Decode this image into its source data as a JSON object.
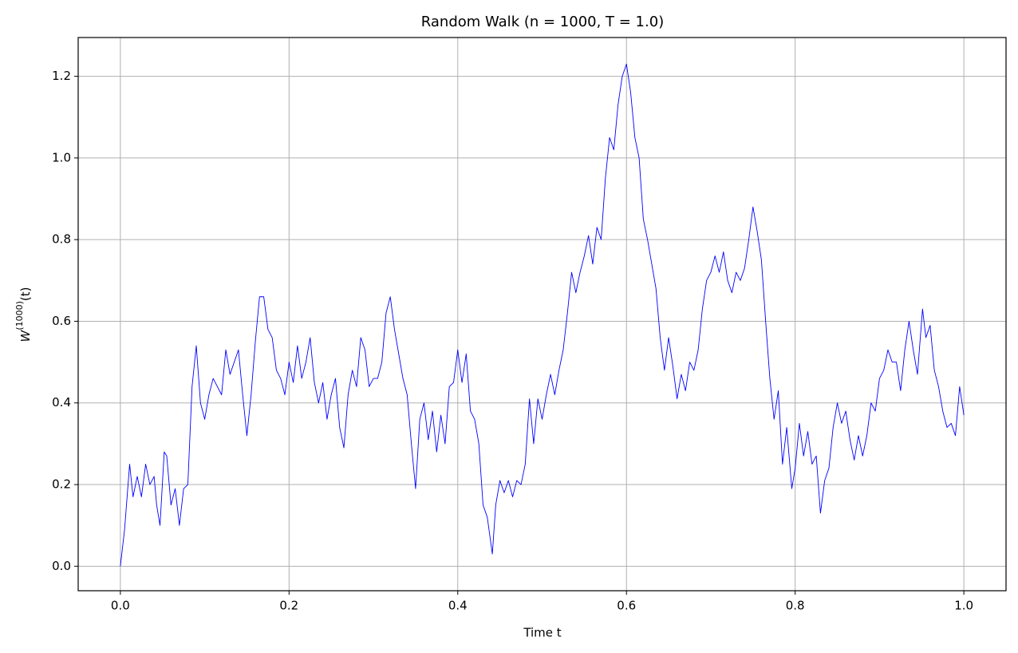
{
  "chart_data": {
    "type": "line",
    "title": "Random Walk (n = 1000, T = 1.0)",
    "xlabel": "Time t",
    "ylabel": {
      "base": "W",
      "sup": "(1000)",
      "arg": "(t)"
    },
    "color": "#0000ff",
    "grid": true,
    "xlim": [
      -0.05,
      1.05
    ],
    "ylim": [
      -0.06,
      1.295
    ],
    "xticks": [
      {
        "value": 0,
        "label": "0.0"
      },
      {
        "value": 0.2,
        "label": "0.2"
      },
      {
        "value": 0.4,
        "label": "0.4"
      },
      {
        "value": 0.6,
        "label": "0.6"
      },
      {
        "value": 0.8,
        "label": "0.8"
      },
      {
        "value": 1,
        "label": "1.0"
      }
    ],
    "yticks": [
      {
        "value": 0,
        "label": "0.0"
      },
      {
        "value": 0.2,
        "label": "0.2"
      },
      {
        "value": 0.4,
        "label": "0.4"
      },
      {
        "value": 0.6,
        "label": "0.6"
      },
      {
        "value": 0.8,
        "label": "0.8"
      },
      {
        "value": 1,
        "label": "1.0"
      },
      {
        "value": 1.2,
        "label": "1.2"
      }
    ],
    "x": [
      0,
      0.005,
      0.011,
      0.015,
      0.02,
      0.025,
      0.03,
      0.035,
      0.04,
      0.043,
      0.047,
      0.052,
      0.055,
      0.06,
      0.065,
      0.07,
      0.075,
      0.08,
      0.085,
      0.09,
      0.095,
      0.1,
      0.105,
      0.11,
      0.12,
      0.125,
      0.13,
      0.14,
      0.145,
      0.15,
      0.155,
      0.16,
      0.165,
      0.17,
      0.175,
      0.18,
      0.185,
      0.19,
      0.195,
      0.2,
      0.205,
      0.21,
      0.215,
      0.22,
      0.225,
      0.23,
      0.235,
      0.24,
      0.245,
      0.25,
      0.255,
      0.26,
      0.265,
      0.27,
      0.275,
      0.28,
      0.285,
      0.29,
      0.295,
      0.3,
      0.305,
      0.31,
      0.315,
      0.32,
      0.325,
      0.33,
      0.335,
      0.34,
      0.345,
      0.35,
      0.355,
      0.36,
      0.365,
      0.37,
      0.375,
      0.38,
      0.385,
      0.39,
      0.395,
      0.4,
      0.405,
      0.41,
      0.415,
      0.42,
      0.425,
      0.43,
      0.435,
      0.441,
      0.445,
      0.45,
      0.455,
      0.46,
      0.465,
      0.47,
      0.475,
      0.48,
      0.485,
      0.49,
      0.495,
      0.5,
      0.505,
      0.51,
      0.515,
      0.52,
      0.525,
      0.53,
      0.535,
      0.54,
      0.545,
      0.55,
      0.555,
      0.56,
      0.565,
      0.57,
      0.575,
      0.58,
      0.585,
      0.59,
      0.595,
      0.6,
      0.605,
      0.61,
      0.615,
      0.62,
      0.625,
      0.63,
      0.635,
      0.64,
      0.645,
      0.65,
      0.655,
      0.66,
      0.665,
      0.67,
      0.675,
      0.68,
      0.685,
      0.69,
      0.695,
      0.7,
      0.705,
      0.71,
      0.715,
      0.72,
      0.725,
      0.73,
      0.735,
      0.74,
      0.745,
      0.75,
      0.755,
      0.76,
      0.765,
      0.77,
      0.775,
      0.78,
      0.785,
      0.79,
      0.796,
      0.8,
      0.805,
      0.81,
      0.815,
      0.82,
      0.825,
      0.83,
      0.835,
      0.84,
      0.845,
      0.85,
      0.855,
      0.86,
      0.865,
      0.87,
      0.875,
      0.88,
      0.885,
      0.89,
      0.895,
      0.9,
      0.905,
      0.91,
      0.915,
      0.92,
      0.925,
      0.93,
      0.935,
      0.94,
      0.945,
      0.951,
      0.955,
      0.96,
      0.965,
      0.97,
      0.975,
      0.98,
      0.985,
      0.99,
      0.995,
      1.0
    ],
    "values": [
      0,
      0.09,
      0.25,
      0.17,
      0.22,
      0.17,
      0.25,
      0.2,
      0.22,
      0.15,
      0.1,
      0.28,
      0.27,
      0.15,
      0.19,
      0.1,
      0.19,
      0.2,
      0.44,
      0.54,
      0.4,
      0.36,
      0.42,
      0.46,
      0.42,
      0.53,
      0.47,
      0.53,
      0.42,
      0.32,
      0.42,
      0.55,
      0.66,
      0.66,
      0.58,
      0.56,
      0.48,
      0.46,
      0.42,
      0.5,
      0.45,
      0.54,
      0.46,
      0.5,
      0.56,
      0.45,
      0.4,
      0.45,
      0.36,
      0.42,
      0.46,
      0.34,
      0.29,
      0.42,
      0.48,
      0.44,
      0.56,
      0.53,
      0.44,
      0.46,
      0.46,
      0.5,
      0.62,
      0.66,
      0.58,
      0.52,
      0.46,
      0.42,
      0.3,
      0.19,
      0.36,
      0.4,
      0.31,
      0.38,
      0.28,
      0.37,
      0.3,
      0.44,
      0.45,
      0.53,
      0.45,
      0.52,
      0.38,
      0.36,
      0.3,
      0.15,
      0.12,
      0.03,
      0.15,
      0.21,
      0.18,
      0.21,
      0.17,
      0.21,
      0.2,
      0.25,
      0.41,
      0.3,
      0.41,
      0.36,
      0.42,
      0.47,
      0.42,
      0.48,
      0.53,
      0.62,
      0.72,
      0.67,
      0.72,
      0.76,
      0.81,
      0.74,
      0.83,
      0.8,
      0.95,
      1.05,
      1.02,
      1.13,
      1.2,
      1.23,
      1.16,
      1.05,
      1.0,
      0.85,
      0.8,
      0.74,
      0.68,
      0.56,
      0.48,
      0.56,
      0.49,
      0.41,
      0.47,
      0.43,
      0.5,
      0.48,
      0.53,
      0.63,
      0.7,
      0.72,
      0.76,
      0.72,
      0.77,
      0.7,
      0.67,
      0.72,
      0.7,
      0.73,
      0.8,
      0.88,
      0.82,
      0.75,
      0.6,
      0.46,
      0.36,
      0.43,
      0.25,
      0.34,
      0.19,
      0.24,
      0.35,
      0.27,
      0.33,
      0.25,
      0.27,
      0.13,
      0.21,
      0.24,
      0.34,
      0.4,
      0.35,
      0.38,
      0.31,
      0.26,
      0.32,
      0.27,
      0.32,
      0.4,
      0.38,
      0.46,
      0.48,
      0.53,
      0.5,
      0.5,
      0.43,
      0.53,
      0.6,
      0.53,
      0.47,
      0.63,
      0.56,
      0.59,
      0.48,
      0.44,
      0.38,
      0.34,
      0.35,
      0.32,
      0.44,
      0.37
    ]
  }
}
